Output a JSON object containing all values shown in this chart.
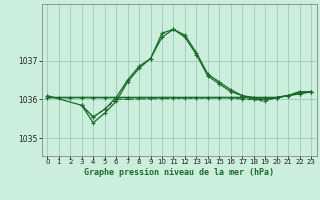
{
  "title": "Graphe pression niveau de la mer (hPa)",
  "background_color": "#cceedd",
  "grid_color": "#99ccbb",
  "line_color": "#1a6b2a",
  "ylim": [
    1034.55,
    1038.45
  ],
  "yticks": [
    1035,
    1036,
    1037
  ],
  "xlim": [
    -0.5,
    23.5
  ],
  "xticks": [
    0,
    1,
    2,
    3,
    4,
    5,
    6,
    7,
    8,
    9,
    10,
    11,
    12,
    13,
    14,
    15,
    16,
    17,
    18,
    19,
    20,
    21,
    22,
    23
  ],
  "series": [
    {
      "x": [
        0,
        1,
        2,
        3,
        4,
        5,
        6,
        7,
        8,
        9,
        10,
        11,
        12,
        13,
        14,
        15,
        16,
        17,
        18,
        19,
        20,
        21,
        22,
        23
      ],
      "y": [
        1036.05,
        1036.05,
        1036.05,
        1036.05,
        1036.05,
        1036.05,
        1036.05,
        1036.05,
        1036.05,
        1036.05,
        1036.05,
        1036.05,
        1036.05,
        1036.05,
        1036.05,
        1036.05,
        1036.05,
        1036.05,
        1036.05,
        1036.05,
        1036.05,
        1036.1,
        1036.15,
        1036.2
      ],
      "lw": 1.2,
      "dashed": false,
      "has_markers": true
    },
    {
      "x": [
        0,
        3,
        4,
        5,
        6,
        7,
        8,
        9,
        10,
        11,
        12,
        13,
        14,
        15,
        16,
        17,
        18,
        19,
        20,
        21,
        22,
        23
      ],
      "y": [
        1036.1,
        1035.85,
        1035.55,
        1035.75,
        1036.05,
        1036.5,
        1036.85,
        1037.05,
        1037.6,
        1037.8,
        1037.6,
        1037.15,
        1036.6,
        1036.4,
        1036.2,
        1036.1,
        1036.05,
        1036.0,
        1036.05,
        1036.1,
        1036.2,
        1036.2
      ],
      "lw": 0.9,
      "dashed": false,
      "has_markers": true
    },
    {
      "x": [
        3,
        4,
        5,
        6,
        7,
        8,
        9,
        10,
        11,
        12,
        13,
        14,
        15,
        16,
        17,
        18,
        19,
        20,
        21,
        22,
        23
      ],
      "y": [
        1035.85,
        1035.4,
        1035.65,
        1035.95,
        1036.45,
        1036.8,
        1037.05,
        1037.7,
        1037.8,
        1037.65,
        1037.2,
        1036.65,
        1036.45,
        1036.25,
        1036.1,
        1036.0,
        1036.0,
        1036.05,
        1036.1,
        1036.2,
        1036.2
      ],
      "lw": 0.9,
      "dashed": false,
      "has_markers": true
    },
    {
      "x": [
        3,
        4,
        5,
        6,
        16,
        17,
        18,
        19,
        20,
        21,
        22,
        23
      ],
      "y": [
        1035.85,
        1035.55,
        1035.75,
        1036.0,
        1036.05,
        1036.0,
        1036.0,
        1035.95,
        1036.05,
        1036.1,
        1036.15,
        1036.2
      ],
      "lw": 0.8,
      "dashed": true,
      "has_markers": true
    }
  ]
}
